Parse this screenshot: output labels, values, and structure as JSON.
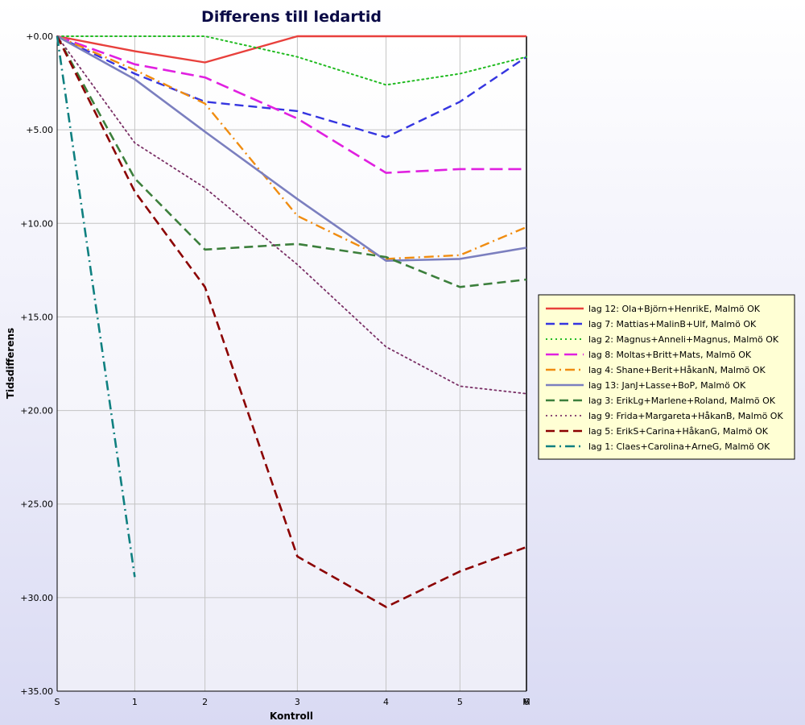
{
  "chart_data": {
    "type": "line",
    "title": "Differens till ledartid",
    "xlabel": "Kontroll",
    "ylabel": "Tidsdifferens",
    "y_tick_labels": [
      "+0.00",
      "+5.00",
      "+10.00",
      "+15.00",
      "+20.00",
      "+25.00",
      "+30.00",
      "+35.00"
    ],
    "y_tick_values": [
      0,
      5,
      10,
      15,
      20,
      25,
      30,
      35
    ],
    "ylim": [
      0,
      35
    ],
    "y_inverted": true,
    "x_tick_labels": [
      "S",
      "1",
      "2",
      "3",
      "4",
      "5",
      "M"
    ],
    "x_tick_values": [
      0,
      1.05,
      2.0,
      3.25,
      4.45,
      5.45,
      6.35
    ],
    "x_end_overlay_label": "6",
    "xlim": [
      0,
      6.35
    ],
    "grid": true,
    "legend_position": "right",
    "series": [
      {
        "name": "lag 12: Ola+Björn+HenrikE, Malmö OK",
        "color": "#e8403c",
        "dash": "solid",
        "width": 2.4,
        "x": [
          0,
          1.05,
          2.0,
          3.25,
          4.45,
          5.45,
          6.35
        ],
        "y": [
          0,
          0.8,
          1.4,
          0,
          0,
          0,
          0
        ]
      },
      {
        "name": "lag 7: Mattias+MalinB+Ulf, Malmö OK",
        "color": "#3535e0",
        "dash": "dash",
        "width": 2.4,
        "x": [
          0,
          1.05,
          2.0,
          3.25,
          4.45,
          5.45,
          6.35
        ],
        "y": [
          0,
          2.0,
          3.5,
          4.0,
          5.4,
          3.5,
          1.1
        ]
      },
      {
        "name": "lag 2: Magnus+Anneli+Magnus, Malmö OK",
        "color": "#22bb22",
        "dash": "dot",
        "width": 2.0,
        "x": [
          0,
          1.05,
          2.0,
          3.25,
          4.45,
          5.45,
          6.35
        ],
        "y": [
          0,
          0,
          0,
          1.1,
          2.6,
          2.0,
          1.1
        ]
      },
      {
        "name": "lag 8: Moltas+Britt+Mats, Malmö OK",
        "color": "#e020e0",
        "dash": "longdash",
        "width": 2.6,
        "x": [
          0,
          1.05,
          2.0,
          3.25,
          4.45,
          5.45,
          6.35
        ],
        "y": [
          0,
          1.5,
          2.2,
          4.4,
          7.3,
          7.1,
          7.1
        ]
      },
      {
        "name": "lag 4: Shane+Berit+HåkanN, Malmö OK",
        "color": "#f08c10",
        "dash": "dashdot",
        "width": 2.4,
        "x": [
          0,
          1.05,
          2.0,
          3.25,
          4.45,
          5.45,
          6.35
        ],
        "y": [
          0,
          1.8,
          3.6,
          9.6,
          11.9,
          11.7,
          10.2
        ]
      },
      {
        "name": "lag 13: JanJ+Lasse+BoP, Malmö OK",
        "color": "#7b7fbf",
        "dash": "solid",
        "width": 2.6,
        "x": [
          0,
          1.05,
          2.0,
          3.25,
          4.45,
          5.45,
          6.35
        ],
        "y": [
          0,
          2.3,
          5.1,
          8.7,
          12.0,
          11.9,
          11.3
        ]
      },
      {
        "name": "lag 3: ErikLg+Marlene+Roland, Malmö OK",
        "color": "#3c7f3c",
        "dash": "dash",
        "width": 2.6,
        "x": [
          0,
          1.05,
          2.0,
          3.25,
          4.45,
          5.45,
          6.35
        ],
        "y": [
          0,
          7.6,
          11.4,
          11.1,
          11.8,
          13.4,
          13.0
        ]
      },
      {
        "name": "lag 9: Frida+Margareta+HåkanB, Malmö OK",
        "color": "#7a3066",
        "dash": "dot",
        "width": 1.8,
        "x": [
          0,
          1.05,
          2.0,
          3.25,
          4.45,
          5.45,
          6.35
        ],
        "y": [
          0,
          5.7,
          8.1,
          12.2,
          16.6,
          18.7,
          19.1
        ]
      },
      {
        "name": "lag 5: ErikS+Carina+HåkanG, Malmö OK",
        "color": "#8b0000",
        "dash": "dash",
        "width": 2.6,
        "x": [
          0,
          1.05,
          2.0,
          3.25,
          4.45,
          5.45,
          6.35
        ],
        "y": [
          0,
          8.3,
          13.4,
          27.8,
          30.5,
          28.6,
          27.3
        ]
      },
      {
        "name": "lag 1: Claes+Carolina+ArneG, Malmö OK",
        "color": "#0f8080",
        "dash": "dashdot",
        "width": 2.6,
        "x": [
          0,
          1.05
        ],
        "y": [
          0,
          28.9
        ]
      }
    ]
  }
}
